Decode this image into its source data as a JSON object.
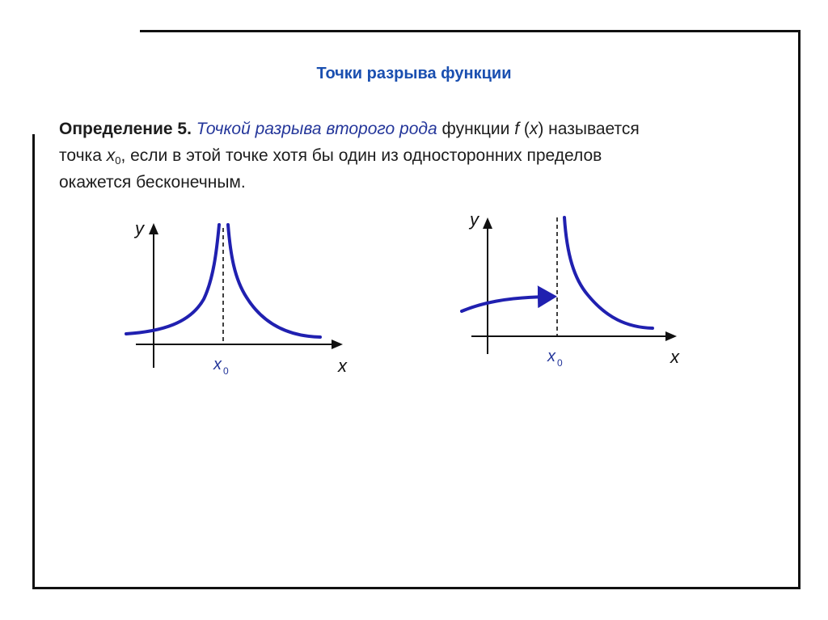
{
  "slide": {
    "title": "Точки разрыва функции",
    "definition": {
      "label": "Определение 5.",
      "term": "Точкой разрыва второго рода",
      "text_1": " функции ",
      "func": "f",
      "text_2": " (",
      "var": "x",
      "text_3": ") называется",
      "text_4": "точка ",
      "point": "x",
      "point_sub": "0",
      "text_5": ", если в этой точке хотя бы один из односторонних пределов",
      "text_6": "окажется бесконечным."
    }
  },
  "graphs": [
    {
      "y_label": "y",
      "x_label": "x",
      "point_label": "x",
      "point_sub": "0"
    },
    {
      "y_label": "y",
      "x_label": "x",
      "point_label": "x",
      "point_sub": "0"
    }
  ],
  "colors": {
    "curve": "#2020b0",
    "title": "#1a4fb0",
    "term": "#24369a"
  }
}
